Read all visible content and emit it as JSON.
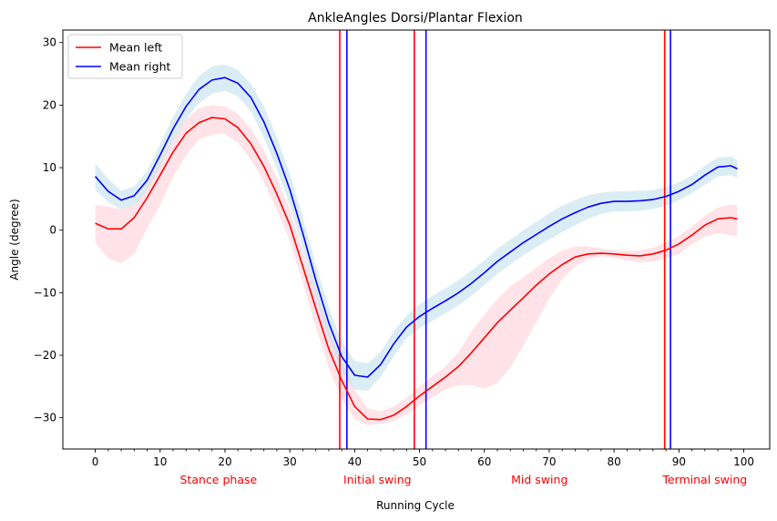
{
  "chart_data": {
    "type": "line",
    "title": "AnkleAngles Dorsi/Plantar Flexion",
    "xlabel": "Running Cycle",
    "ylabel": "Angle (degree)",
    "xlim": [
      -5,
      104
    ],
    "ylim": [
      -35,
      32
    ],
    "xticks": [
      0,
      10,
      20,
      30,
      40,
      50,
      60,
      70,
      80,
      90,
      100
    ],
    "xtick_labels": [
      "0",
      "10",
      "20",
      "30",
      "40",
      "50",
      "60",
      "70",
      "80",
      "90",
      "100"
    ],
    "yticks": [
      -30,
      -20,
      -10,
      0,
      10,
      20,
      30
    ],
    "ytick_labels": [
      "−30",
      "−20",
      "−10",
      "0",
      "10",
      "20",
      "30"
    ],
    "minor_xtick_step": 2,
    "grid": false,
    "legend": {
      "position": "top-left",
      "entries": [
        {
          "label": "Mean left",
          "color": "#ff0000"
        },
        {
          "label": "Mean right",
          "color": "#0000ff"
        }
      ]
    },
    "series": [
      {
        "name": "Mean left",
        "color": "#ff0000",
        "band_color": "#ffc0cb",
        "x": [
          0,
          2,
          4,
          6,
          8,
          10,
          12,
          14,
          16,
          18,
          20,
          22,
          24,
          26,
          28,
          30,
          32,
          34,
          36,
          38,
          40,
          42,
          44,
          46,
          48,
          50,
          52,
          54,
          56,
          58,
          60,
          62,
          64,
          66,
          68,
          70,
          72,
          74,
          76,
          78,
          80,
          82,
          84,
          86,
          88,
          90,
          92,
          94,
          96,
          98,
          99
        ],
        "y": [
          1.1,
          0.2,
          0.2,
          2.0,
          5.2,
          8.8,
          12.5,
          15.5,
          17.2,
          18.0,
          17.8,
          16.4,
          13.8,
          10.2,
          5.8,
          0.8,
          -5.8,
          -12.5,
          -19.0,
          -24.0,
          -28.2,
          -30.2,
          -30.3,
          -29.6,
          -28.2,
          -26.5,
          -25.0,
          -23.5,
          -21.8,
          -19.6,
          -17.2,
          -14.8,
          -12.8,
          -10.8,
          -8.8,
          -7.0,
          -5.5,
          -4.3,
          -3.8,
          -3.7,
          -3.8,
          -4.0,
          -4.1,
          -3.8,
          -3.2,
          -2.2,
          -0.8,
          0.8,
          1.8,
          2.0,
          1.8
        ],
        "band_lower": [
          -2.0,
          -4.5,
          -5.3,
          -3.8,
          0.3,
          4.0,
          8.5,
          12.0,
          14.5,
          15.3,
          15.4,
          14.0,
          11.3,
          7.7,
          3.3,
          -1.7,
          -8.3,
          -15.5,
          -22.0,
          -27.0,
          -30.2,
          -31.2,
          -31.0,
          -30.5,
          -29.5,
          -28.0,
          -26.7,
          -25.5,
          -24.8,
          -24.8,
          -25.3,
          -24.5,
          -22.0,
          -18.5,
          -14.8,
          -11.0,
          -7.8,
          -5.8,
          -4.6,
          -4.2,
          -4.4,
          -4.8,
          -5.2,
          -5.0,
          -4.5,
          -3.8,
          -2.3,
          -1.0,
          -0.5,
          -0.8,
          -1.0
        ],
        "band_upper": [
          4.0,
          3.8,
          3.3,
          4.0,
          7.0,
          10.8,
          14.5,
          17.8,
          19.5,
          20.0,
          19.8,
          18.6,
          16.2,
          12.8,
          8.4,
          3.3,
          -3.3,
          -9.8,
          -16.0,
          -21.0,
          -25.5,
          -28.5,
          -29.0,
          -28.2,
          -26.8,
          -25.0,
          -23.3,
          -21.8,
          -19.5,
          -16.2,
          -13.5,
          -11.0,
          -9.0,
          -7.5,
          -6.0,
          -4.5,
          -3.2,
          -2.6,
          -2.6,
          -2.9,
          -3.2,
          -3.3,
          -3.2,
          -2.8,
          -2.0,
          -0.9,
          0.6,
          2.3,
          3.6,
          4.1,
          4.0
        ]
      },
      {
        "name": "Mean right",
        "color": "#0000ff",
        "band_color": "#add8e6",
        "x": [
          0,
          2,
          4,
          6,
          8,
          10,
          12,
          14,
          16,
          18,
          20,
          22,
          24,
          26,
          28,
          30,
          32,
          34,
          36,
          38,
          40,
          42,
          44,
          46,
          48,
          50,
          52,
          54,
          56,
          58,
          60,
          62,
          64,
          66,
          68,
          70,
          72,
          74,
          76,
          78,
          80,
          82,
          84,
          86,
          88,
          90,
          92,
          94,
          96,
          98,
          99
        ],
        "y": [
          8.6,
          6.2,
          4.8,
          5.5,
          8.0,
          12.0,
          16.2,
          19.8,
          22.5,
          24.0,
          24.4,
          23.5,
          21.2,
          17.3,
          12.3,
          6.5,
          -0.5,
          -8.0,
          -14.8,
          -20.2,
          -23.2,
          -23.5,
          -21.5,
          -18.2,
          -15.5,
          -13.8,
          -12.5,
          -11.3,
          -10.0,
          -8.5,
          -6.8,
          -5.0,
          -3.5,
          -2.0,
          -0.7,
          0.6,
          1.8,
          2.8,
          3.7,
          4.3,
          4.6,
          4.6,
          4.7,
          4.9,
          5.4,
          6.2,
          7.3,
          8.8,
          10.1,
          10.3,
          9.8
        ],
        "band_lower": [
          6.5,
          4.5,
          3.3,
          4.0,
          6.5,
          10.3,
          14.3,
          17.8,
          20.3,
          21.8,
          22.3,
          21.4,
          19.0,
          14.8,
          9.8,
          4.0,
          -3.0,
          -10.5,
          -17.3,
          -22.5,
          -25.5,
          -25.7,
          -23.5,
          -20.2,
          -17.3,
          -15.7,
          -14.5,
          -13.3,
          -12.0,
          -10.5,
          -8.8,
          -7.0,
          -5.5,
          -4.0,
          -2.7,
          -1.5,
          -0.3,
          0.8,
          1.8,
          2.6,
          3.0,
          3.0,
          3.1,
          3.4,
          3.9,
          4.8,
          5.9,
          7.3,
          8.6,
          8.8,
          8.4
        ],
        "band_upper": [
          10.7,
          8.2,
          6.3,
          7.0,
          9.5,
          13.7,
          18.1,
          21.8,
          24.7,
          26.2,
          26.5,
          25.6,
          23.4,
          19.8,
          14.8,
          9.0,
          2.0,
          -5.5,
          -12.3,
          -17.9,
          -20.9,
          -21.3,
          -19.5,
          -16.2,
          -13.7,
          -11.9,
          -10.5,
          -9.3,
          -8.0,
          -6.5,
          -4.8,
          -3.0,
          -1.5,
          0.0,
          1.3,
          2.7,
          3.9,
          4.8,
          5.6,
          6.0,
          6.2,
          6.2,
          6.3,
          6.4,
          6.9,
          7.6,
          8.7,
          10.3,
          11.6,
          11.8,
          11.2
        ]
      }
    ],
    "vertical_lines": [
      {
        "x": 37.7,
        "color": "#ff0000"
      },
      {
        "x": 38.8,
        "color": "#0000ff"
      },
      {
        "x": 49.2,
        "color": "#ff0000"
      },
      {
        "x": 51.0,
        "color": "#0000ff"
      },
      {
        "x": 87.8,
        "color": "#ff0000"
      },
      {
        "x": 88.7,
        "color": "#0000ff"
      }
    ],
    "phase_labels": [
      {
        "text": "Stance phase",
        "x": 19,
        "color": "#ff0000"
      },
      {
        "text": "Initial swing",
        "x": 43.5,
        "color": "#ff0000"
      },
      {
        "text": "Mid swing",
        "x": 68.5,
        "color": "#ff0000"
      },
      {
        "text": "Terminal swing",
        "x": 94,
        "color": "#ff0000"
      }
    ]
  }
}
